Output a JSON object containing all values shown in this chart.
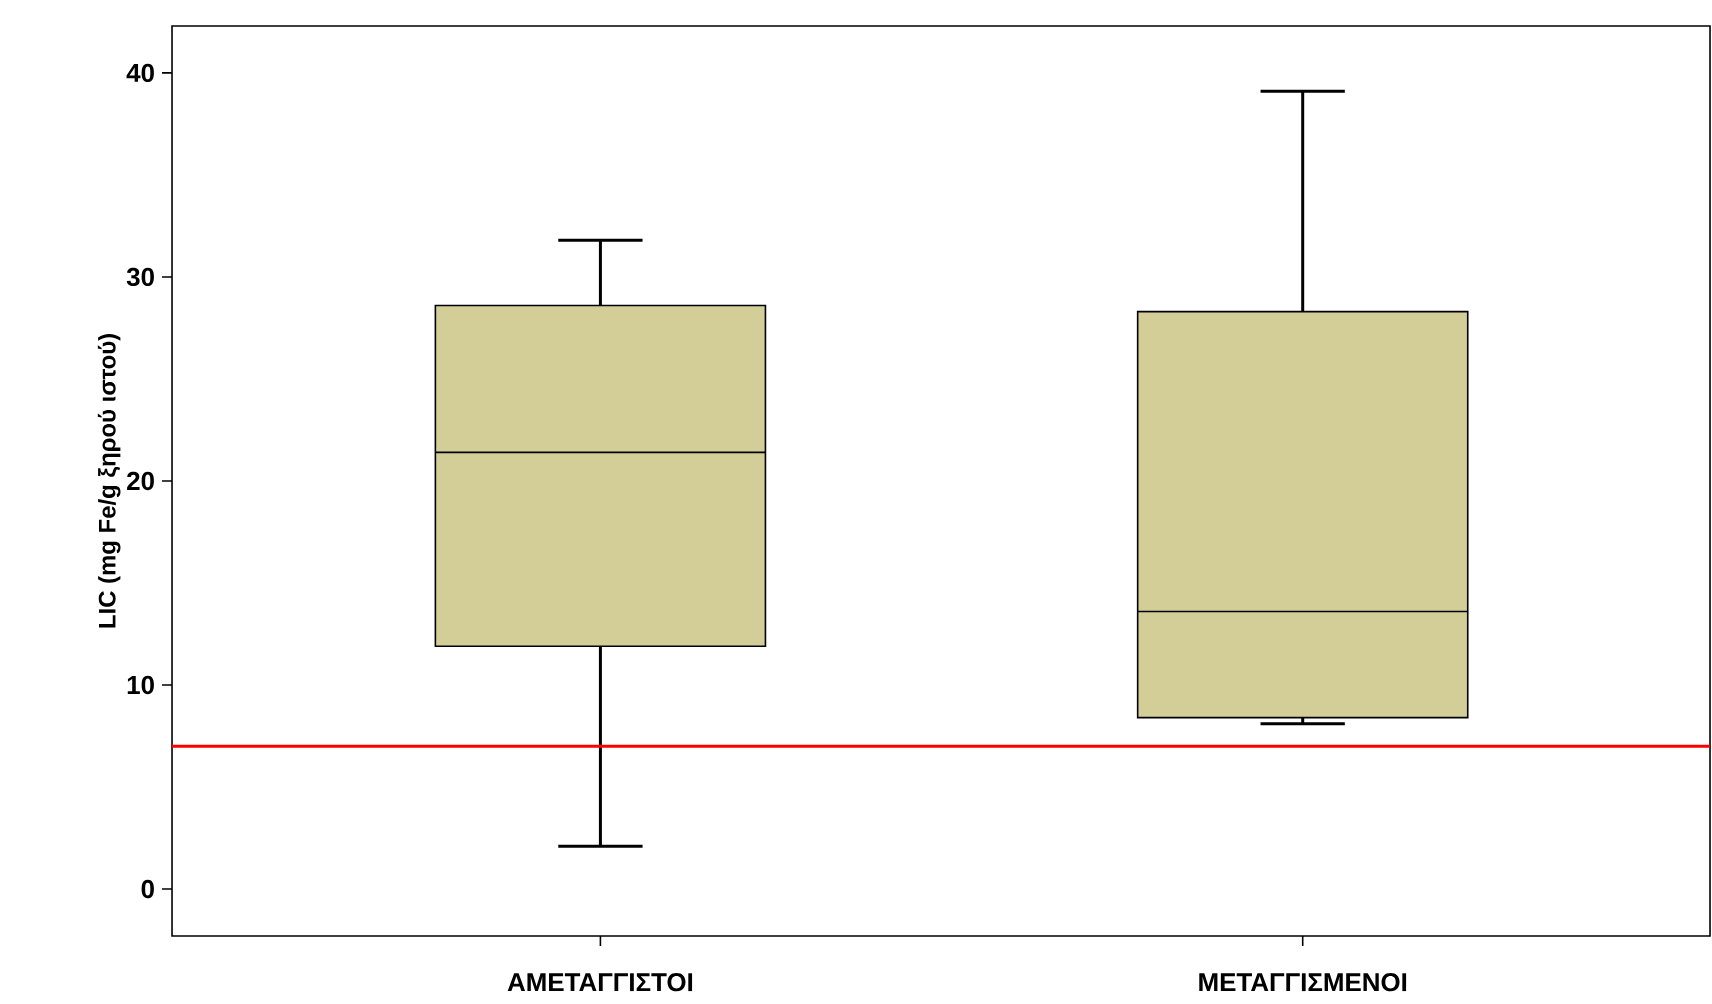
{
  "chart_data": {
    "type": "box",
    "ylabel": "LIC (mg Fe/g ξηρού ιστού)",
    "categories": [
      "ΑΜΕΤΑΓΓΙΣΤΟΙ",
      "ΜΕΤΑΓΓΙΣΜΕΝΟΙ"
    ],
    "boxes": [
      {
        "low": 2.1,
        "q1": 11.9,
        "median": 21.4,
        "q3": 28.6,
        "high": 31.8
      },
      {
        "low": 8.1,
        "q1": 8.4,
        "median": 13.6,
        "q3": 28.3,
        "high": 39.1
      }
    ],
    "color": "#d3ce98",
    "ylim": [
      -2.3,
      42.3
    ],
    "yticks": [
      0,
      10,
      20,
      30,
      40
    ],
    "grid": false,
    "ref_lines": [
      {
        "axis": "y",
        "value": 7,
        "color": "#ff0000"
      }
    ]
  }
}
